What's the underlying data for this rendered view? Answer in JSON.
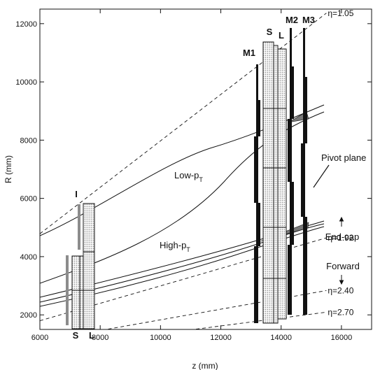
{
  "axes": {
    "xlabel": "z (mm)",
    "ylabel": "R (mm)",
    "xlim": [
      6000,
      17000
    ],
    "ylim": [
      1500,
      12500
    ],
    "xticks": [
      6000,
      8000,
      10000,
      12000,
      14000,
      16000
    ],
    "yticks": [
      2000,
      4000,
      6000,
      8000,
      10000,
      12000
    ],
    "xtick_labels": [
      "6000",
      "8000",
      "10000",
      "12000",
      "14000",
      "16000"
    ],
    "ytick_labels": [
      "2000",
      "4000",
      "6000",
      "8000",
      "10000",
      "12000"
    ]
  },
  "eta_lines": [
    {
      "label": "η=1.05",
      "eta": 1.05
    },
    {
      "label": "η=1.92",
      "eta": 1.92
    },
    {
      "label": "η=2.40",
      "eta": 2.4
    },
    {
      "label": "η=2.70",
      "eta": 2.7
    }
  ],
  "labels": {
    "inner_I": "I",
    "inner_S": "S",
    "inner_L": "L",
    "big_S": "S",
    "big_L": "L",
    "M1": "M1",
    "M2": "M2",
    "M3": "M3",
    "low_pt_main": "Low-p",
    "low_pt_sub": "T",
    "high_pt_main": "High-p",
    "high_pt_sub": "T",
    "pivot_plane": "Pivot plane",
    "end_cap": "End-cap",
    "forward": "Forward"
  },
  "colors": {
    "frame": "#111111",
    "chamber_fill": "#bdbdbd",
    "shaded_region": "#7a7a7a",
    "gray_bar": "#8c8c8c"
  }
}
